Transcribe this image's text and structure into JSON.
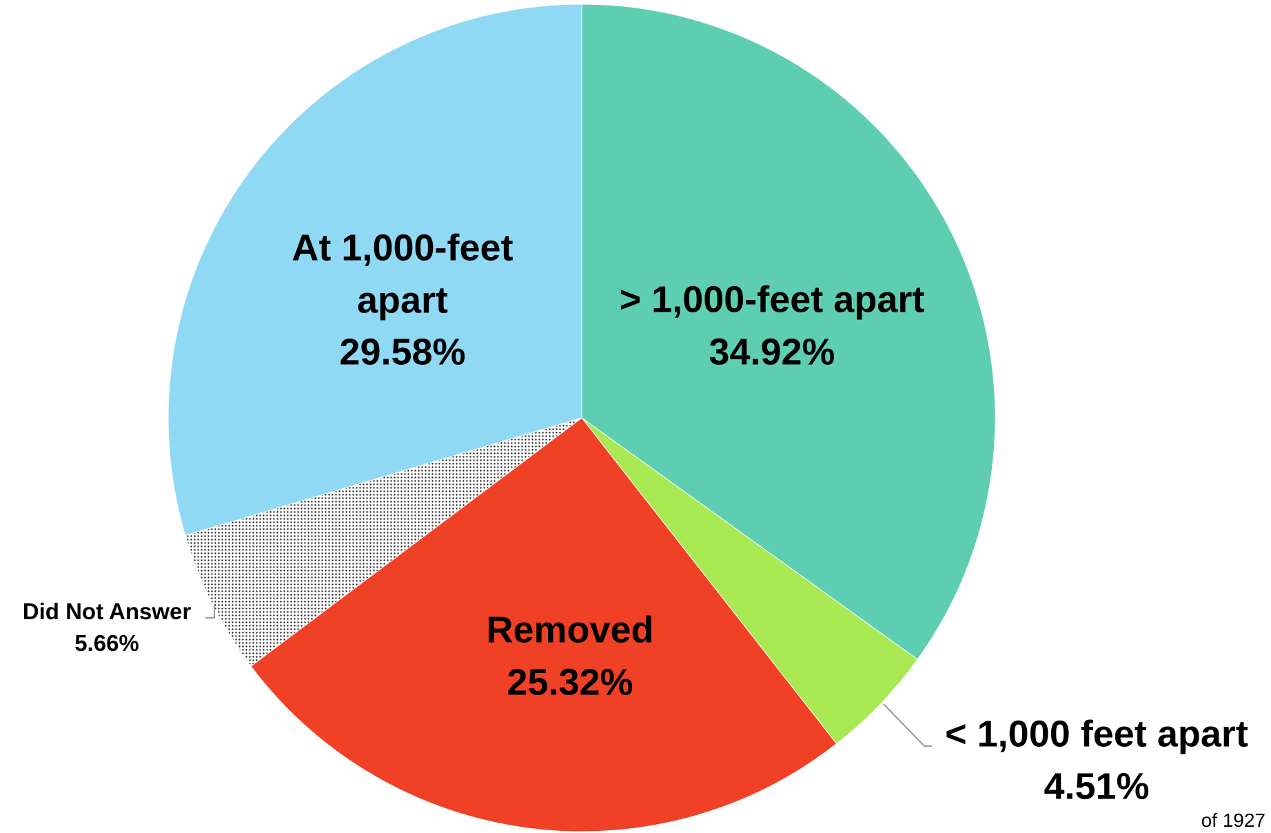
{
  "chart_data": {
    "type": "pie",
    "categories": [
      "> 1,000-feet apart",
      "< 1,000 feet apart",
      "Removed",
      "Did Not Answer",
      "At 1,000-feet apart"
    ],
    "values": [
      34.92,
      4.51,
      25.32,
      5.66,
      29.58
    ],
    "value_labels": [
      "34.92%",
      "4.51%",
      "25.32%",
      "5.66%",
      "29.58%"
    ],
    "colors": [
      "#5ECEB2",
      "#A8E852",
      "#F04025",
      "dots",
      "#8FD9F5"
    ],
    "note": "of 1927"
  }
}
